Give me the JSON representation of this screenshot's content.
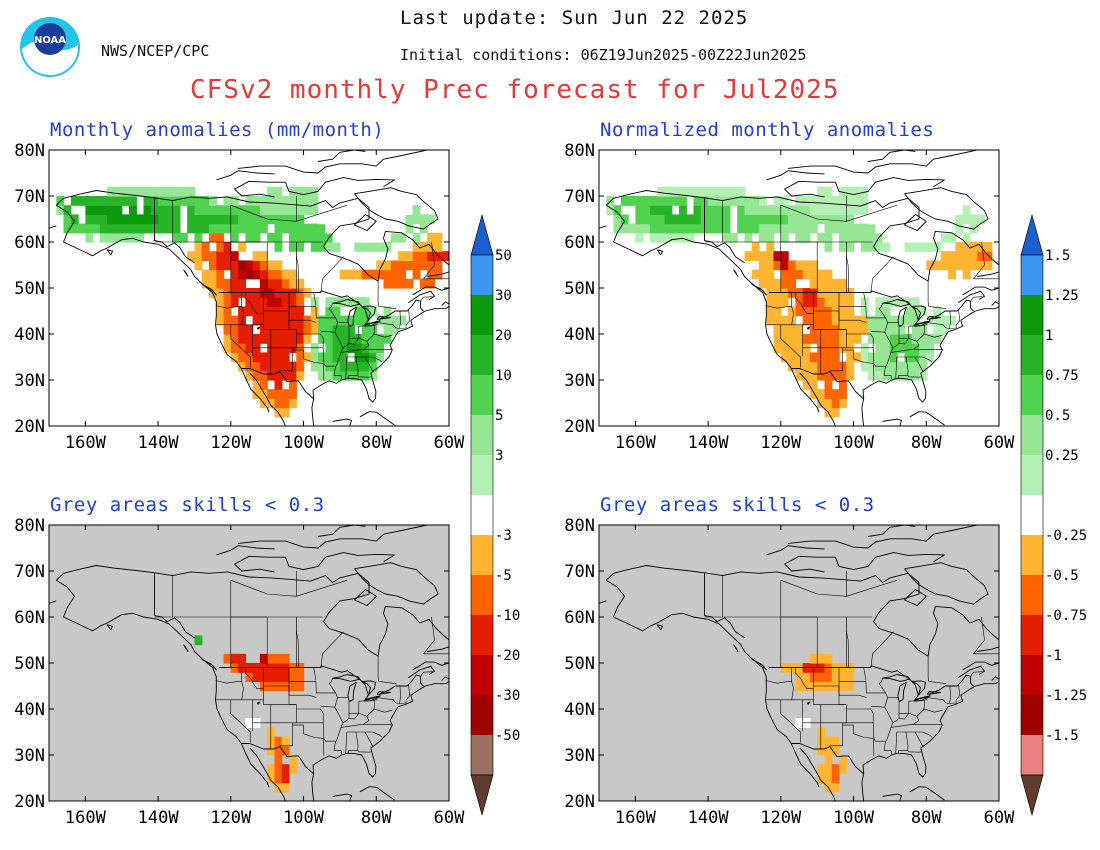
{
  "header": {
    "last_update": "Last update: Sun Jun 22 2025",
    "agency": "NWS/NCEP/CPC",
    "initial_conditions": "Initial conditions: 06Z19Jun2025-00Z22Jun2025",
    "title": "CFSv2 monthly Prec forecast for Jul2025",
    "logo_text": "NOAA"
  },
  "panels": [
    {
      "id": "anom",
      "title": "Monthly anomalies (mm/month)",
      "masked": false,
      "colorbar": "left"
    },
    {
      "id": "norm",
      "title": "Normalized monthly anomalies",
      "masked": false,
      "colorbar": "right"
    },
    {
      "id": "anom_skill",
      "title": "Grey areas skills < 0.3",
      "masked": true,
      "colorbar": "left"
    },
    {
      "id": "norm_skill",
      "title": "Grey areas skills < 0.3",
      "masked": true,
      "colorbar": "right"
    }
  ],
  "axes": {
    "lat_labels": [
      "80N",
      "70N",
      "60N",
      "50N",
      "40N",
      "30N",
      "20N"
    ],
    "lon_labels": [
      "160W",
      "140W",
      "120W",
      "100W",
      "80W",
      "60W"
    ],
    "lat_range": [
      20,
      80
    ],
    "lon_range": [
      -170,
      -60
    ]
  },
  "colorbars": {
    "left_labels": [
      "50",
      "30",
      "20",
      "10",
      "5",
      "3",
      "-3",
      "-5",
      "-10",
      "-20",
      "-30",
      "-50"
    ],
    "right_labels": [
      "1.5",
      "1.25",
      "1",
      "0.75",
      "0.5",
      "0.25",
      "-0.25",
      "-0.5",
      "-0.75",
      "-1",
      "-1.25",
      "-1.5"
    ],
    "colors": [
      "#1a5fd0",
      "#3c96f0",
      "#0d9a0d",
      "#28b428",
      "#50d250",
      "#96e696",
      "#b4f0b4",
      "#ffffff",
      "#ffb432",
      "#ff6400",
      "#e61e00",
      "#c00000",
      "#a00000",
      "#9a7060",
      "#603c30"
    ],
    "right_colors_neg": [
      "#ffb432",
      "#ff6400",
      "#e61e00",
      "#c00000",
      "#a00000",
      "#e88080",
      "#603c30"
    ]
  },
  "colors": {
    "title_red": "#e03a3a",
    "panel_title_blue": "#1f3fd6",
    "mask_grey": "#c8c8c8"
  }
}
